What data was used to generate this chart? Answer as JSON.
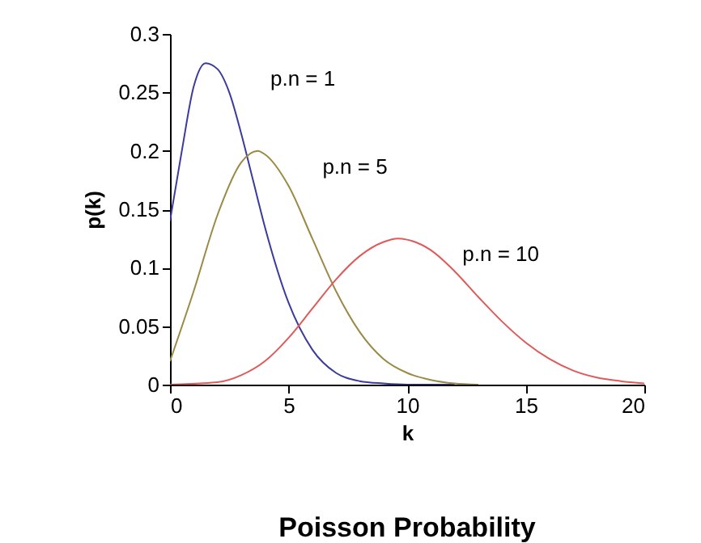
{
  "chart_data": {
    "type": "line",
    "title": "Poisson Probability",
    "xlabel": "k",
    "ylabel": "p(k)",
    "xlim": [
      0,
      20
    ],
    "xticks": [
      0,
      5,
      10,
      15,
      20
    ],
    "ylim": [
      0,
      0.3
    ],
    "yticks": [
      0,
      0.05,
      0.1,
      0.15,
      0.2,
      0.25,
      0.3
    ],
    "grid": false,
    "legend": false,
    "marker": "none",
    "line_style": "solid",
    "series": [
      {
        "name": "p.n = 1",
        "color": "#3b3b9e",
        "x": [
          0,
          0.5,
          1,
          1.5,
          2,
          2.5,
          3,
          3.5,
          4,
          5,
          6,
          7,
          8,
          9,
          10,
          12
        ],
        "values": [
          0.14,
          0.2,
          0.255,
          0.275,
          0.27,
          0.25,
          0.215,
          0.175,
          0.135,
          0.07,
          0.03,
          0.01,
          0.003,
          0.001,
          0,
          0
        ]
      },
      {
        "name": "p.n = 5",
        "color": "#9a8a45",
        "x": [
          0,
          1,
          2,
          3,
          3.7,
          4,
          5,
          6,
          7,
          8,
          9,
          10,
          11,
          12,
          13
        ],
        "values": [
          0.02,
          0.08,
          0.145,
          0.19,
          0.2,
          0.197,
          0.17,
          0.125,
          0.08,
          0.045,
          0.022,
          0.01,
          0.004,
          0.001,
          0
        ]
      },
      {
        "name": "p.n = 10",
        "color": "#e05a5a",
        "x": [
          0,
          2,
          3,
          4,
          5,
          6,
          7,
          8,
          9,
          9.6,
          10,
          11,
          12,
          13,
          14,
          15,
          16,
          17,
          18,
          19,
          20
        ],
        "values": [
          0,
          0.002,
          0.008,
          0.02,
          0.04,
          0.065,
          0.09,
          0.11,
          0.122,
          0.125,
          0.124,
          0.115,
          0.097,
          0.075,
          0.054,
          0.036,
          0.022,
          0.012,
          0.006,
          0.003,
          0.001
        ]
      }
    ]
  }
}
